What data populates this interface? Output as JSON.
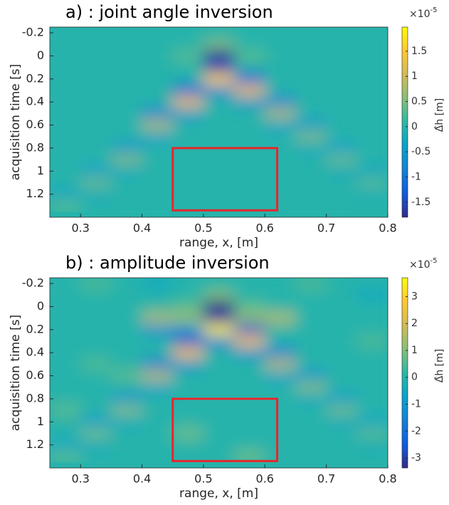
{
  "chart_data": [
    {
      "type": "heatmap",
      "title": "a) : joint angle inversion",
      "xlabel": "range, x, [m]",
      "ylabel": "acquisition time [s]",
      "xlim": [
        0.25,
        0.8
      ],
      "xticks": [
        0.3,
        0.4,
        0.5,
        0.6,
        0.7,
        0.8
      ],
      "ylim": [
        -0.25,
        1.4
      ],
      "yticks": [
        -0.2,
        0,
        0.2,
        0.4,
        0.6,
        0.8,
        1,
        1.2
      ],
      "y_reversed": true,
      "x": [
        0.275,
        0.325,
        0.375,
        0.425,
        0.475,
        0.525,
        0.575,
        0.625,
        0.675,
        0.725,
        0.775
      ],
      "y": [
        -0.2,
        -0.1,
        0,
        0.1,
        0.2,
        0.3,
        0.4,
        0.5,
        0.6,
        0.7,
        0.8,
        0.9,
        1,
        1.1,
        1.2,
        1.3
      ],
      "z": [
        [
          0,
          0,
          0,
          0,
          0,
          0,
          0,
          0,
          0,
          0,
          0
        ],
        [
          0,
          0,
          0,
          0,
          0,
          0.5,
          0,
          0,
          0,
          0,
          0
        ],
        [
          0,
          0,
          0,
          0,
          0.3,
          -1.7,
          0.3,
          0,
          0,
          0,
          0
        ],
        [
          0,
          0,
          0,
          0,
          0,
          -1.5,
          0,
          0,
          0,
          0,
          0
        ],
        [
          0,
          0,
          0,
          0,
          0,
          1.6,
          -1.3,
          0,
          0,
          0,
          0
        ],
        [
          0,
          0,
          0,
          0,
          -1.3,
          -0.8,
          1.3,
          0,
          0,
          0,
          0
        ],
        [
          0,
          0,
          0,
          0,
          1.3,
          0,
          -0.6,
          -0.8,
          0,
          0,
          0
        ],
        [
          0,
          0,
          0,
          -0.8,
          -0.6,
          0,
          0,
          0.8,
          0,
          0,
          0
        ],
        [
          0,
          0,
          0,
          0.8,
          0,
          0,
          0,
          -0.4,
          -0.5,
          0,
          0
        ],
        [
          0,
          0,
          0,
          -0.4,
          0,
          0,
          0,
          0,
          0.5,
          0,
          0
        ],
        [
          0,
          0,
          -0.5,
          0,
          0,
          0,
          0,
          0,
          -0.25,
          -0.4,
          0
        ],
        [
          0,
          0,
          0.5,
          0,
          0,
          0,
          0,
          0,
          0,
          0.4,
          0
        ],
        [
          0,
          -0.4,
          -0.25,
          0,
          0,
          0,
          0,
          0,
          0,
          -0.2,
          -0.3
        ],
        [
          0,
          0.4,
          0,
          0,
          0,
          0,
          0,
          0,
          0,
          0,
          0.3
        ],
        [
          -0.3,
          -0.2,
          0,
          0,
          0,
          0,
          0,
          0,
          0,
          0,
          -0.15
        ],
        [
          0.3,
          0,
          0,
          0,
          0,
          0,
          0,
          0,
          0,
          0,
          0
        ]
      ],
      "colormap": "parula",
      "clim": [
        -1.8,
        1.98
      ],
      "cticks": [
        -1.5,
        -1,
        -0.5,
        0,
        0.5,
        1,
        1.5
      ],
      "colorbar_multiplier": {
        "base": "×10",
        "exponent": "-5"
      },
      "colorbar_label": "Δ̂h [m]",
      "highlight_box": {
        "xlim": [
          0.45,
          0.62
        ],
        "ylim": [
          0.8,
          1.34
        ],
        "color": "#e8262b"
      }
    },
    {
      "type": "heatmap",
      "title": "b) : amplitude inversion",
      "xlabel": "range, x, [m]",
      "ylabel": "acquisition time [s]",
      "xlim": [
        0.25,
        0.8
      ],
      "xticks": [
        0.3,
        0.4,
        0.5,
        0.6,
        0.7,
        0.8
      ],
      "ylim": [
        -0.25,
        1.4
      ],
      "yticks": [
        -0.2,
        0,
        0.2,
        0.4,
        0.6,
        0.8,
        1,
        1.2
      ],
      "y_reversed": true,
      "x": [
        0.275,
        0.325,
        0.375,
        0.425,
        0.475,
        0.525,
        0.575,
        0.625,
        0.675,
        0.725,
        0.775
      ],
      "y": [
        -0.2,
        -0.1,
        0,
        0.1,
        0.2,
        0.3,
        0.4,
        0.5,
        0.6,
        0.7,
        0.8,
        0.9,
        1,
        1.1,
        1.2,
        1.3
      ],
      "z": [
        [
          0,
          0.5,
          0,
          -0.5,
          0,
          0,
          0,
          0,
          0.5,
          0,
          0
        ],
        [
          0,
          0,
          0,
          0,
          0,
          1,
          0,
          0,
          0,
          0,
          -0.5
        ],
        [
          0,
          0,
          0,
          0,
          0.6,
          -3.5,
          0.6,
          0,
          0,
          0,
          0
        ],
        [
          0,
          0,
          0,
          1.5,
          1.2,
          -3,
          1.2,
          1.5,
          0,
          0,
          0
        ],
        [
          0,
          0,
          0,
          -1.2,
          -1,
          3.5,
          -2.6,
          0,
          0,
          0,
          0
        ],
        [
          0,
          0,
          0,
          0,
          -2.6,
          -1.6,
          2.6,
          0,
          0,
          0,
          0.5
        ],
        [
          0,
          0,
          0,
          0,
          2.6,
          0,
          -1.2,
          -1.6,
          0,
          0,
          0
        ],
        [
          0,
          0.5,
          0,
          -1.6,
          -1.2,
          0,
          0,
          1.6,
          0,
          0,
          0
        ],
        [
          0,
          0,
          0.6,
          1.6,
          0,
          0,
          0,
          -0.8,
          -1,
          0,
          0
        ],
        [
          0,
          0,
          0,
          -0.8,
          0,
          0,
          0,
          0,
          1,
          0,
          0
        ],
        [
          0,
          0,
          -1,
          0,
          0,
          0,
          0,
          0,
          -0.5,
          -0.8,
          0
        ],
        [
          0.6,
          0,
          1,
          0,
          0,
          0,
          0,
          0,
          0,
          0.8,
          0
        ],
        [
          0,
          -0.8,
          -0.5,
          0,
          0,
          0,
          0,
          0,
          0,
          -0.4,
          -0.6
        ],
        [
          0,
          0.8,
          0,
          0,
          0.8,
          0,
          0,
          0,
          0,
          0,
          0.6
        ],
        [
          -0.6,
          -0.4,
          0,
          0,
          0,
          0,
          0,
          0,
          0,
          0,
          -0.3
        ],
        [
          0.6,
          0,
          0,
          0,
          0,
          0,
          0.8,
          0,
          0,
          0,
          0
        ]
      ],
      "colormap": "parula",
      "clim": [
        -3.37,
        3.7
      ],
      "cticks": [
        -3,
        -2,
        -1,
        0,
        1,
        2,
        3
      ],
      "colorbar_multiplier": {
        "base": "×10",
        "exponent": "-5"
      },
      "colorbar_label": "Δ̂h [m]",
      "highlight_box": {
        "xlim": [
          0.45,
          0.62
        ],
        "ylim": [
          0.8,
          1.34
        ],
        "color": "#e8262b"
      }
    }
  ]
}
